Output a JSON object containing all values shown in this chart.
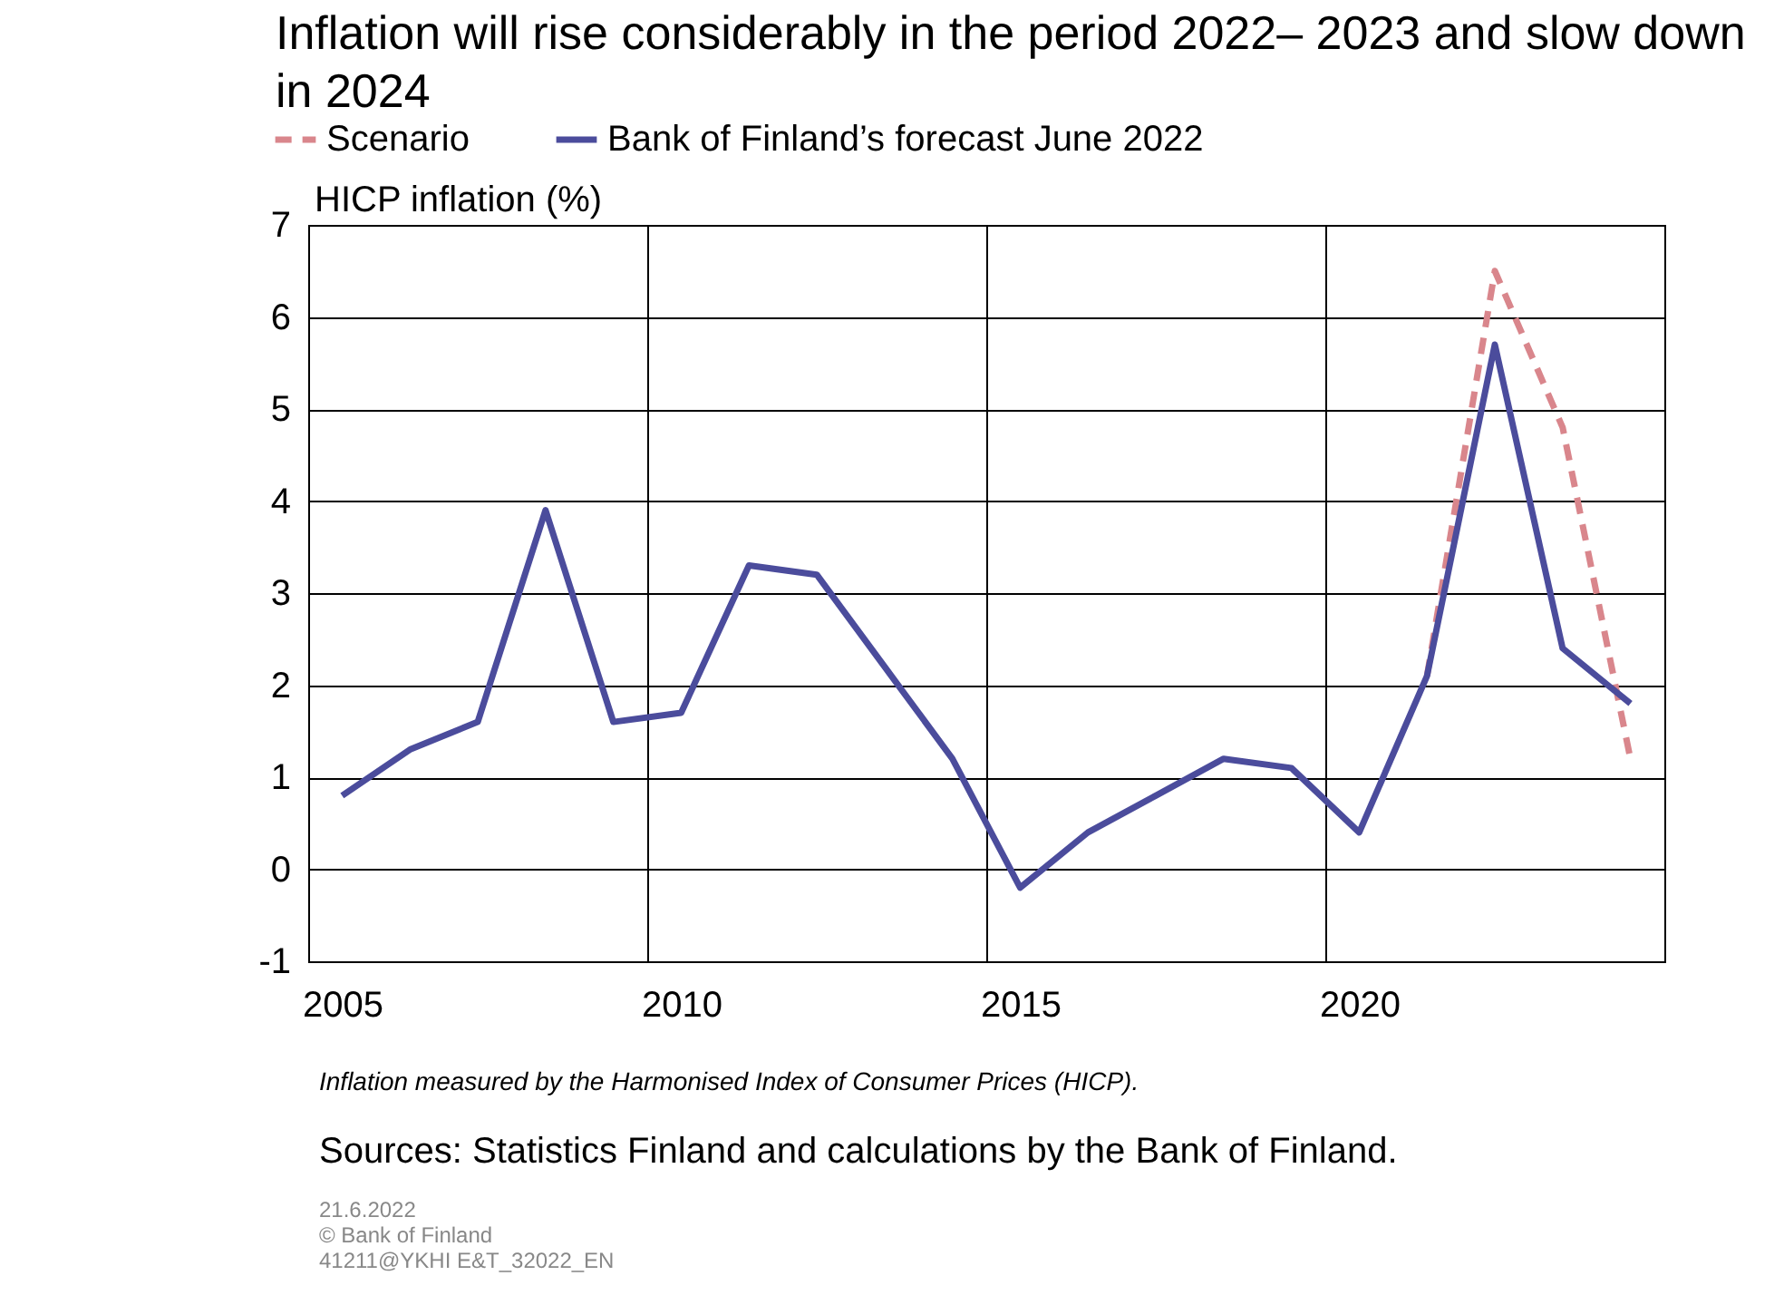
{
  "chart_data": {
    "type": "line",
    "title": "Inflation will rise considerably in the period 2022– 2023 and slow down in 2024",
    "ylabel": "HICP inflation (%)",
    "x": [
      2005,
      2006,
      2007,
      2008,
      2009,
      2010,
      2011,
      2012,
      2013,
      2014,
      2015,
      2016,
      2017,
      2018,
      2019,
      2020,
      2021,
      2022,
      2023,
      2024
    ],
    "series": [
      {
        "name": "Scenario",
        "color": "#d9868c",
        "line_style": "dashed",
        "values": [
          null,
          null,
          null,
          null,
          null,
          null,
          null,
          null,
          null,
          null,
          null,
          null,
          null,
          null,
          null,
          null,
          2.1,
          6.5,
          4.8,
          1.2
        ]
      },
      {
        "name": "Bank of Finland’s forecast June 2022",
        "color": "#4b4c9c",
        "line_style": "solid",
        "values": [
          0.8,
          1.3,
          1.6,
          3.9,
          1.6,
          1.7,
          3.3,
          3.2,
          2.2,
          1.2,
          -0.2,
          0.4,
          0.8,
          1.2,
          1.1,
          0.4,
          2.1,
          5.7,
          2.4,
          1.8
        ]
      }
    ],
    "xlim": [
      2004.5,
      2024.5
    ],
    "xticks": [
      2005,
      2010,
      2015,
      2020,
      {
        "value": 2009.5,
        "label": null
      },
      {
        "value": 2014.5,
        "label": null
      },
      {
        "value": 2019.5,
        "label": null
      }
    ],
    "ylim": [
      -1,
      7
    ],
    "yticks": [
      -1,
      0,
      1,
      2,
      3,
      4,
      5,
      6,
      7
    ],
    "grid": true,
    "legend": "top",
    "marker": "none",
    "annotations": [
      "Inflation measured by the Harmonised Index of Consumer Prices (HICP).",
      "Sources: Statistics Finland and calculations by the Bank of Finland.",
      "21.6.2022",
      "© Bank of Finland",
      "41211@YKHI E&T_32022_EN"
    ]
  }
}
